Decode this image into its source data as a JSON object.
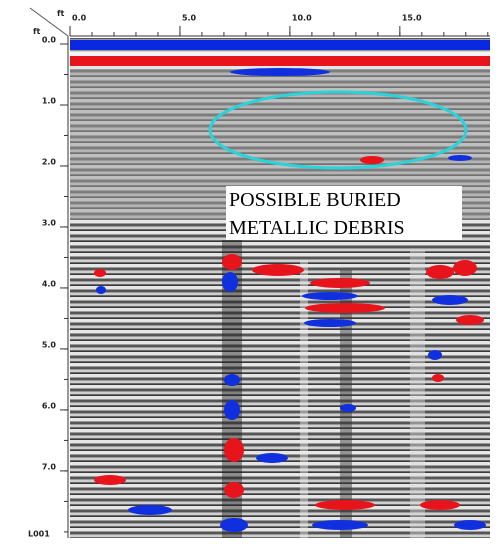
{
  "chart_data": {
    "type": "radargram",
    "x_label": "ft",
    "y_label": "ft",
    "xlim": [
      0,
      19.1
    ],
    "ylim": [
      0,
      8.1
    ],
    "xticks": [
      {
        "value": 0,
        "label": "0.0"
      },
      {
        "value": 5,
        "label": "5.0"
      },
      {
        "value": 10,
        "label": "10.0"
      },
      {
        "value": 15,
        "label": "15.0"
      }
    ],
    "yticks": [
      {
        "value": 0,
        "label": "0.0"
      },
      {
        "value": 1,
        "label": "1.0"
      },
      {
        "value": 2,
        "label": "2.0"
      },
      {
        "value": 3,
        "label": "3.0"
      },
      {
        "value": 4,
        "label": "4.0"
      },
      {
        "value": 5,
        "label": "5.0"
      },
      {
        "value": 6,
        "label": "6.0"
      },
      {
        "value": 7,
        "label": "7.0"
      }
    ],
    "annotation": [
      "POSSIBLE BURIED",
      "METALLIC DEBRIS"
    ],
    "file_label": "L001"
  }
}
